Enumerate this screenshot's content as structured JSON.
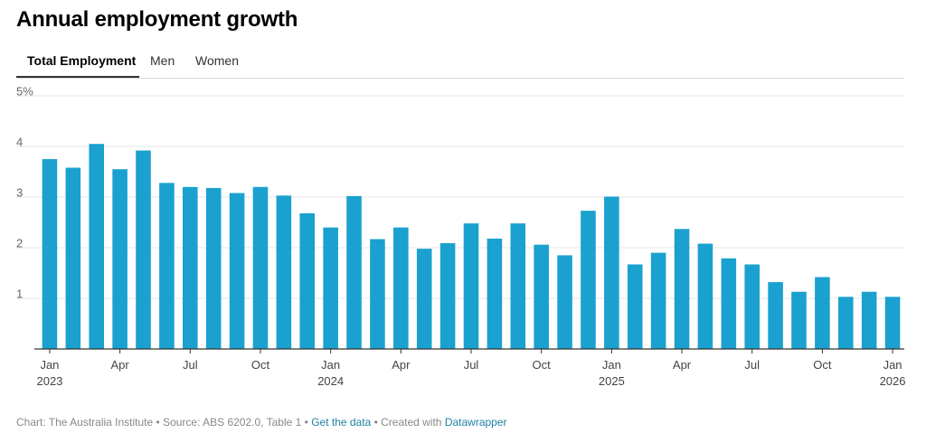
{
  "title": "Annual employment growth",
  "tabs": [
    {
      "label": "Total Employment",
      "active": true
    },
    {
      "label": "Men",
      "active": false
    },
    {
      "label": "Women",
      "active": false
    }
  ],
  "footer": {
    "chart_credit": "Chart: The Australia Institute",
    "sep1": " • ",
    "source": "Source: ABS 6202.0, Table 1",
    "sep2": " • ",
    "get_data": "Get the data",
    "sep3": " • ",
    "created_with": "Created with ",
    "datawrapper": "Datawrapper"
  },
  "colors": {
    "bar": "#1aa1cf",
    "grid": "#e6e6e6",
    "axis": "#333333"
  },
  "chart_data": {
    "type": "bar",
    "title": "Annual employment growth",
    "ylim": [
      0,
      5
    ],
    "yticks": [
      1,
      2,
      3,
      4,
      5
    ],
    "ytick_labels": [
      "1",
      "2",
      "3",
      "4",
      "5%"
    ],
    "grid": true,
    "categories": [
      "2023-01",
      "2023-02",
      "2023-03",
      "2023-04",
      "2023-05",
      "2023-06",
      "2023-07",
      "2023-08",
      "2023-09",
      "2023-10",
      "2023-11",
      "2023-12",
      "2024-01",
      "2024-02",
      "2024-03",
      "2024-04",
      "2024-05",
      "2024-06",
      "2024-07",
      "2024-08",
      "2024-09",
      "2024-10",
      "2024-11",
      "2024-12",
      "2025-01",
      "2025-02",
      "2025-03",
      "2025-04",
      "2025-05",
      "2025-06",
      "2025-07",
      "2025-08",
      "2025-09",
      "2025-10",
      "2025-11",
      "2025-12",
      "2026-01"
    ],
    "values": [
      3.75,
      3.58,
      4.05,
      3.55,
      3.92,
      3.28,
      3.2,
      3.18,
      3.08,
      3.2,
      3.03,
      2.68,
      2.4,
      3.02,
      2.17,
      2.4,
      1.98,
      2.09,
      2.48,
      2.18,
      2.48,
      2.06,
      1.85,
      2.73,
      3.01,
      1.67,
      1.9,
      2.37,
      2.08,
      1.79,
      1.67,
      1.32,
      1.13,
      1.42,
      1.03,
      1.13,
      1.03
    ],
    "xticks": [
      {
        "index": 0,
        "label": "Jan",
        "year": "2023"
      },
      {
        "index": 3,
        "label": "Apr"
      },
      {
        "index": 6,
        "label": "Jul"
      },
      {
        "index": 9,
        "label": "Oct"
      },
      {
        "index": 12,
        "label": "Jan",
        "year": "2024"
      },
      {
        "index": 15,
        "label": "Apr"
      },
      {
        "index": 18,
        "label": "Jul"
      },
      {
        "index": 21,
        "label": "Oct"
      },
      {
        "index": 24,
        "label": "Jan",
        "year": "2025"
      },
      {
        "index": 27,
        "label": "Apr"
      },
      {
        "index": 30,
        "label": "Jul"
      },
      {
        "index": 33,
        "label": "Oct"
      },
      {
        "index": 36,
        "label": "Jan",
        "year": "2026"
      }
    ]
  }
}
